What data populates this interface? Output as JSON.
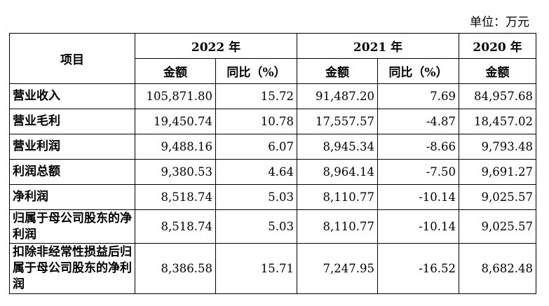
{
  "unit_label": "单位：万元",
  "table": {
    "item_header": "项目",
    "years": [
      "2022 年",
      "2021 年",
      "2020 年"
    ],
    "amount_label": "金额",
    "yoy_label": "同比（%）",
    "rows": [
      {
        "label": "营业收入",
        "v2022": "105,871.80",
        "yoy2022": "15.72",
        "v2021": "91,487.20",
        "yoy2021": "7.69",
        "v2020": "84,957.68"
      },
      {
        "label": "营业毛利",
        "v2022": "19,450.74",
        "yoy2022": "10.78",
        "v2021": "17,557.57",
        "yoy2021": "-4.87",
        "v2020": "18,457.02"
      },
      {
        "label": "营业利润",
        "v2022": "9,488.16",
        "yoy2022": "6.07",
        "v2021": "8,945.34",
        "yoy2021": "-8.66",
        "v2020": "9,793.48"
      },
      {
        "label": "利润总额",
        "v2022": "9,380.53",
        "yoy2022": "4.64",
        "v2021": "8,964.14",
        "yoy2021": "-7.50",
        "v2020": "9,691.27"
      },
      {
        "label": "净利润",
        "v2022": "8,518.74",
        "yoy2022": "5.03",
        "v2021": "8,110.77",
        "yoy2021": "-10.14",
        "v2020": "9,025.57"
      },
      {
        "label": "归属于母公司股东的净利润",
        "v2022": "8,518.74",
        "yoy2022": "5.03",
        "v2021": "8,110.77",
        "yoy2021": "-10.14",
        "v2020": "9,025.57"
      },
      {
        "label": "扣除非经常性损益后归属于母公司股东的净利润",
        "v2022": "8,386.58",
        "yoy2022": "15.71",
        "v2021": "7,247.95",
        "yoy2021": "-16.52",
        "v2020": "8,682.48"
      }
    ]
  }
}
